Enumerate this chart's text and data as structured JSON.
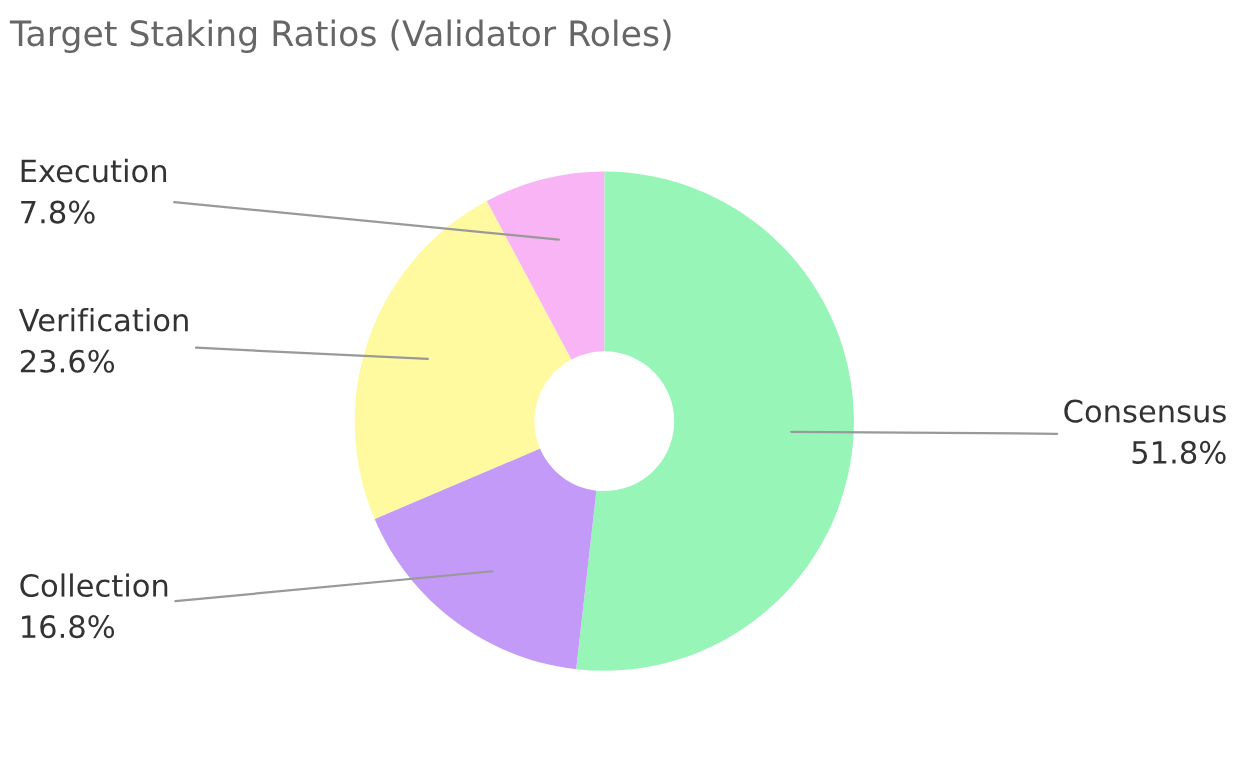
{
  "chart_data": {
    "type": "donut",
    "title": "Target Staking Ratios (Validator Roles)",
    "categories": [
      "Consensus",
      "Collection",
      "Verification",
      "Execution"
    ],
    "values": [
      51.8,
      16.8,
      23.6,
      7.8
    ],
    "colors": [
      "#98f5b8",
      "#c39af8",
      "#fffaa0",
      "#f8b4f4"
    ],
    "value_labels": [
      "51.8%",
      "16.8%",
      "23.6%",
      "7.8%"
    ],
    "legend": false
  }
}
